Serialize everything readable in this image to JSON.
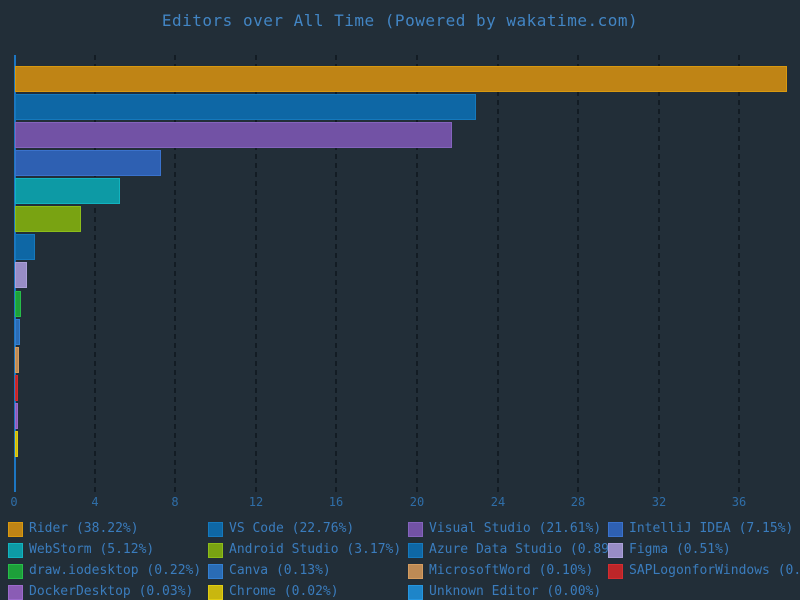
{
  "title": "Editors over All Time (Powered by wakatime.com)",
  "colors": {
    "background": "#222e38",
    "title_text": "#4285c4",
    "legend_text": "#3a7cbd",
    "tick_text": "#2f6ea8",
    "gridline": "#131c24",
    "axis_line": "#1d76c2"
  },
  "chart_data": {
    "type": "bar",
    "orientation": "horizontal",
    "title": "Editors over All Time (Powered by wakatime.com)",
    "xlabel": "",
    "ylabel": "",
    "xlim": [
      0,
      38.6
    ],
    "x_ticks": [
      0,
      4,
      8,
      12,
      16,
      20,
      24,
      28,
      32,
      36
    ],
    "grid": true,
    "legend_position": "bottom",
    "legend_columns": 4,
    "series": [
      {
        "name": "Rider",
        "value": 38.22,
        "label": "Rider (38.22%)",
        "color": "#bf8415",
        "border_color": "#d9990f"
      },
      {
        "name": "VS Code",
        "value": 22.76,
        "label": "VS Code (22.76%)",
        "color": "#0e67a5",
        "border_color": "#1579bd"
      },
      {
        "name": "Visual Studio",
        "value": 21.61,
        "label": "Visual Studio (21.61%)",
        "color": "#7252a5",
        "border_color": "#8464bd"
      },
      {
        "name": "IntelliJ IDEA",
        "value": 7.15,
        "label": "IntelliJ IDEA (7.15%)",
        "color": "#2e60b2",
        "border_color": "#3a72cc"
      },
      {
        "name": "WebStorm",
        "value": 5.12,
        "label": "WebStorm (5.12%)",
        "color": "#0d9aa5",
        "border_color": "#12b3bf"
      },
      {
        "name": "Android Studio",
        "value": 3.17,
        "label": "Android Studio (3.17%)",
        "color": "#79a312",
        "border_color": "#8cbd1a"
      },
      {
        "name": "Azure Data Studio",
        "value": 0.89,
        "label": "Azure Data Studio (0.89%)",
        "color": "#0e67a5",
        "border_color": "#1579bd"
      },
      {
        "name": "Figma",
        "value": 0.51,
        "label": "Figma (0.51%)",
        "color": "#988dc6",
        "border_color": "#aba0d8"
      },
      {
        "name": "draw.iodesktop",
        "value": 0.22,
        "label": "draw.iodesktop (0.22%)",
        "color": "#1da03a",
        "border_color": "#27bd4a"
      },
      {
        "name": "Canva",
        "value": 0.13,
        "label": "Canva (0.13%)",
        "color": "#2a6cb5",
        "border_color": "#337fd1"
      },
      {
        "name": "MicrosoftWord",
        "value": 0.1,
        "label": "MicrosoftWord (0.10%)",
        "color": "#bd8a55",
        "border_color": "#d49c60"
      },
      {
        "name": "SAPLogonforWindows",
        "value": 0.05,
        "label": "SAPLogonforWindows (0.",
        "color": "#bd2629",
        "border_color": "#d42c30"
      },
      {
        "name": "DockerDesktop",
        "value": 0.03,
        "label": "DockerDesktop (0.03%)",
        "color": "#8a5cb5",
        "border_color": "#9c6bcc"
      },
      {
        "name": "Chrome",
        "value": 0.02,
        "label": "Chrome (0.02%)",
        "color": "#c9b70f",
        "border_color": "#e0cc12"
      },
      {
        "name": "Unknown Editor",
        "value": 0.0,
        "label": "Unknown Editor (0.00%)",
        "color": "#1e85c9",
        "border_color": "#2596e0"
      }
    ]
  }
}
